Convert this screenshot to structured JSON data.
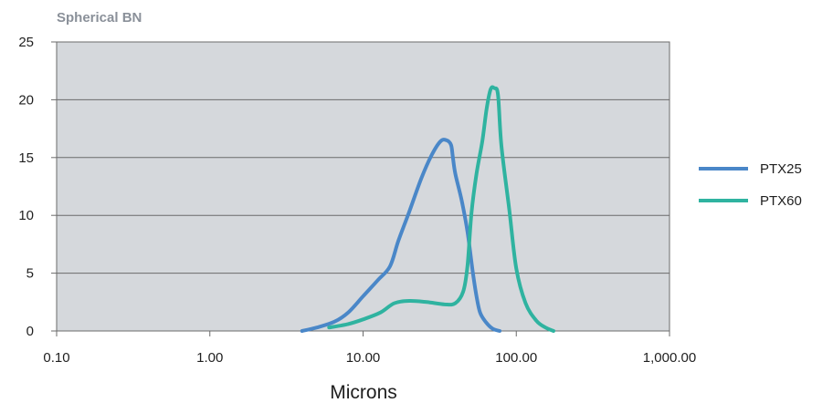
{
  "chart_data": {
    "type": "line",
    "title": "Spherical BN",
    "xlabel": "Microns",
    "ylabel": "",
    "x_scale": "log",
    "xlim": [
      0.1,
      1000
    ],
    "ylim": [
      0,
      25
    ],
    "x_ticks": [
      0.1,
      1,
      10,
      100,
      1000
    ],
    "x_tick_labels": [
      "0.10",
      "1.00",
      "10.00",
      "100.00",
      "1,000.00"
    ],
    "y_ticks": [
      0,
      5,
      10,
      15,
      20,
      25
    ],
    "y_tick_labels": [
      "0",
      "5",
      "10",
      "15",
      "20",
      "25"
    ],
    "grid": "horizontal",
    "plot_background": "#d5d8dc",
    "legend_position": "right",
    "series": [
      {
        "name": "PTX25",
        "color": "#4a87c8",
        "points": [
          [
            4.0,
            0.0
          ],
          [
            5.0,
            0.3
          ],
          [
            6.5,
            0.8
          ],
          [
            8.0,
            1.6
          ],
          [
            10.0,
            3.0
          ],
          [
            12.5,
            4.4
          ],
          [
            15.0,
            5.6
          ],
          [
            17.0,
            7.8
          ],
          [
            20.0,
            10.3
          ],
          [
            24.0,
            13.2
          ],
          [
            28.0,
            15.2
          ],
          [
            32.0,
            16.4
          ],
          [
            35.0,
            16.5
          ],
          [
            37.5,
            16.1
          ],
          [
            38.5,
            15.1
          ],
          [
            40.0,
            13.6
          ],
          [
            44.0,
            11.3
          ],
          [
            48.0,
            8.6
          ],
          [
            52.0,
            5.1
          ],
          [
            55.0,
            3.0
          ],
          [
            58.0,
            1.6
          ],
          [
            63.0,
            0.8
          ],
          [
            70.0,
            0.2
          ],
          [
            78.0,
            0.0
          ]
        ]
      },
      {
        "name": "PTX60",
        "color": "#2fb3a0",
        "points": [
          [
            6.0,
            0.3
          ],
          [
            8.0,
            0.6
          ],
          [
            10.0,
            1.0
          ],
          [
            13.0,
            1.6
          ],
          [
            16.0,
            2.4
          ],
          [
            20.0,
            2.6
          ],
          [
            26.0,
            2.5
          ],
          [
            34.0,
            2.3
          ],
          [
            40.0,
            2.4
          ],
          [
            45.0,
            3.4
          ],
          [
            48.0,
            5.6
          ],
          [
            51.0,
            10.2
          ],
          [
            55.0,
            13.6
          ],
          [
            60.0,
            16.4
          ],
          [
            64.0,
            19.2
          ],
          [
            68.0,
            20.9
          ],
          [
            72.0,
            21.0
          ],
          [
            76.0,
            20.4
          ],
          [
            80.0,
            16.0
          ],
          [
            90.0,
            10.5
          ],
          [
            100.0,
            5.4
          ],
          [
            115.0,
            2.4
          ],
          [
            135.0,
            0.9
          ],
          [
            155.0,
            0.3
          ],
          [
            175.0,
            0.0
          ]
        ]
      }
    ]
  }
}
